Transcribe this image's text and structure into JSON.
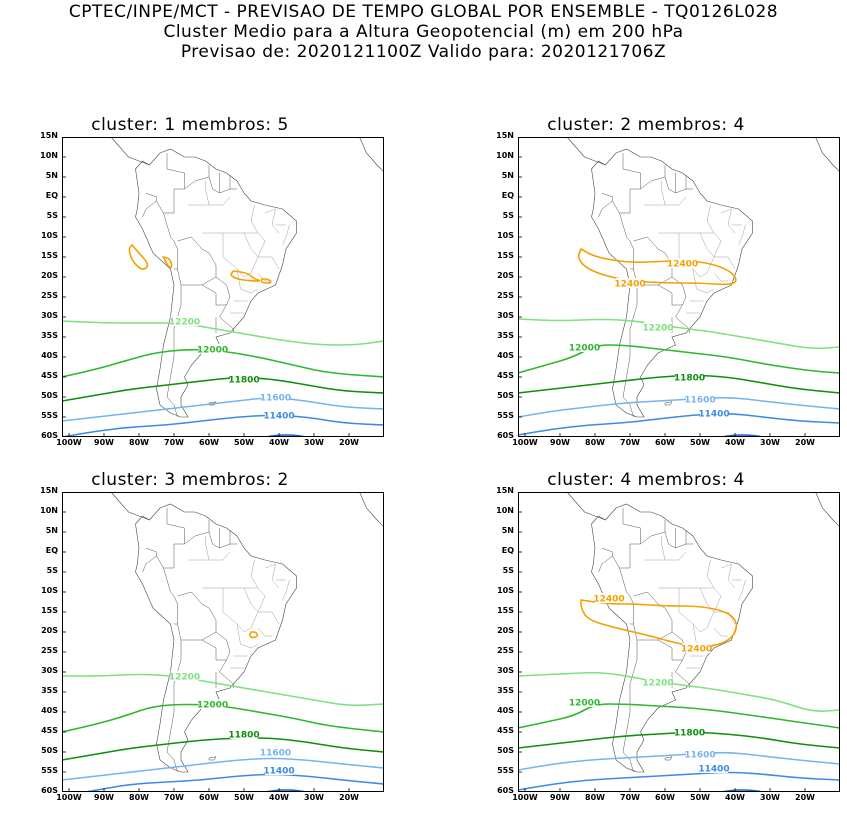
{
  "header": {
    "line1": "CPTEC/INPE/MCT - PREVISAO DE TEMPO GLOBAL POR ENSEMBLE - TQ0126L028",
    "line2": "Cluster Medio para a Altura Geopotencial (m) em 200 hPa",
    "line3": "Previsao de: 2020121100Z    Valido para: 2020121706Z"
  },
  "axes": {
    "lat_labels": [
      "15N",
      "10N",
      "5N",
      "EQ",
      "5S",
      "10S",
      "15S",
      "20S",
      "25S",
      "30S",
      "35S",
      "40S",
      "45S",
      "50S",
      "55S",
      "60S"
    ],
    "lon_labels": [
      "100W",
      "90W",
      "80W",
      "70W",
      "60W",
      "50W",
      "40W",
      "30W",
      "20W"
    ]
  },
  "panels": [
    {
      "title": "cluster: 1   membros: 5",
      "contours": [
        {
          "level": "12400",
          "color": "#f5a000",
          "label": "",
          "kind": "blobs1"
        },
        {
          "level": "12200",
          "color": "#7ee07e",
          "label": "12200",
          "kind": "line"
        },
        {
          "level": "12000",
          "color": "#2db82d",
          "label": "12000",
          "kind": "line"
        },
        {
          "level": "11800",
          "color": "#0d8f0d",
          "label": "11800",
          "kind": "line"
        },
        {
          "level": "11600",
          "color": "#74b4f0",
          "label": "11600",
          "kind": "line"
        },
        {
          "level": "11400",
          "color": "#3a8ae6",
          "label": "11400",
          "kind": "line"
        }
      ]
    },
    {
      "title": "cluster: 2   membros: 4",
      "contours": [
        {
          "level": "12400",
          "color": "#f5a000",
          "label": "12400",
          "kind": "ring2"
        },
        {
          "level": "12200",
          "color": "#7ee07e",
          "label": "12200",
          "kind": "line"
        },
        {
          "level": "12000",
          "color": "#2db82d",
          "label": "12000",
          "kind": "line"
        },
        {
          "level": "11800",
          "color": "#0d8f0d",
          "label": "11800",
          "kind": "line"
        },
        {
          "level": "11600",
          "color": "#74b4f0",
          "label": "11600",
          "kind": "line"
        },
        {
          "level": "11400",
          "color": "#3a8ae6",
          "label": "11400",
          "kind": "line"
        }
      ]
    },
    {
      "title": "cluster: 3   membros: 2",
      "contours": [
        {
          "level": "12400",
          "color": "#f5a000",
          "label": "",
          "kind": "blob3"
        },
        {
          "level": "12200",
          "color": "#7ee07e",
          "label": "12200",
          "kind": "line"
        },
        {
          "level": "12000",
          "color": "#2db82d",
          "label": "12000",
          "kind": "line"
        },
        {
          "level": "11800",
          "color": "#0d8f0d",
          "label": "11800",
          "kind": "line"
        },
        {
          "level": "11600",
          "color": "#74b4f0",
          "label": "11600",
          "kind": "line"
        },
        {
          "level": "11400",
          "color": "#3a8ae6",
          "label": "11400",
          "kind": "line"
        }
      ]
    },
    {
      "title": "cluster: 4   membros: 4",
      "contours": [
        {
          "level": "12400",
          "color": "#f5a000",
          "label": "12400",
          "kind": "ring4"
        },
        {
          "level": "12200",
          "color": "#7ee07e",
          "label": "12200",
          "kind": "line"
        },
        {
          "level": "12000",
          "color": "#2db82d",
          "label": "12000",
          "kind": "line"
        },
        {
          "level": "11800",
          "color": "#0d8f0d",
          "label": "11800",
          "kind": "line"
        },
        {
          "level": "11600",
          "color": "#74b4f0",
          "label": "11600",
          "kind": "line"
        },
        {
          "level": "11400",
          "color": "#3a8ae6",
          "label": "11400",
          "kind": "line"
        }
      ]
    }
  ]
}
